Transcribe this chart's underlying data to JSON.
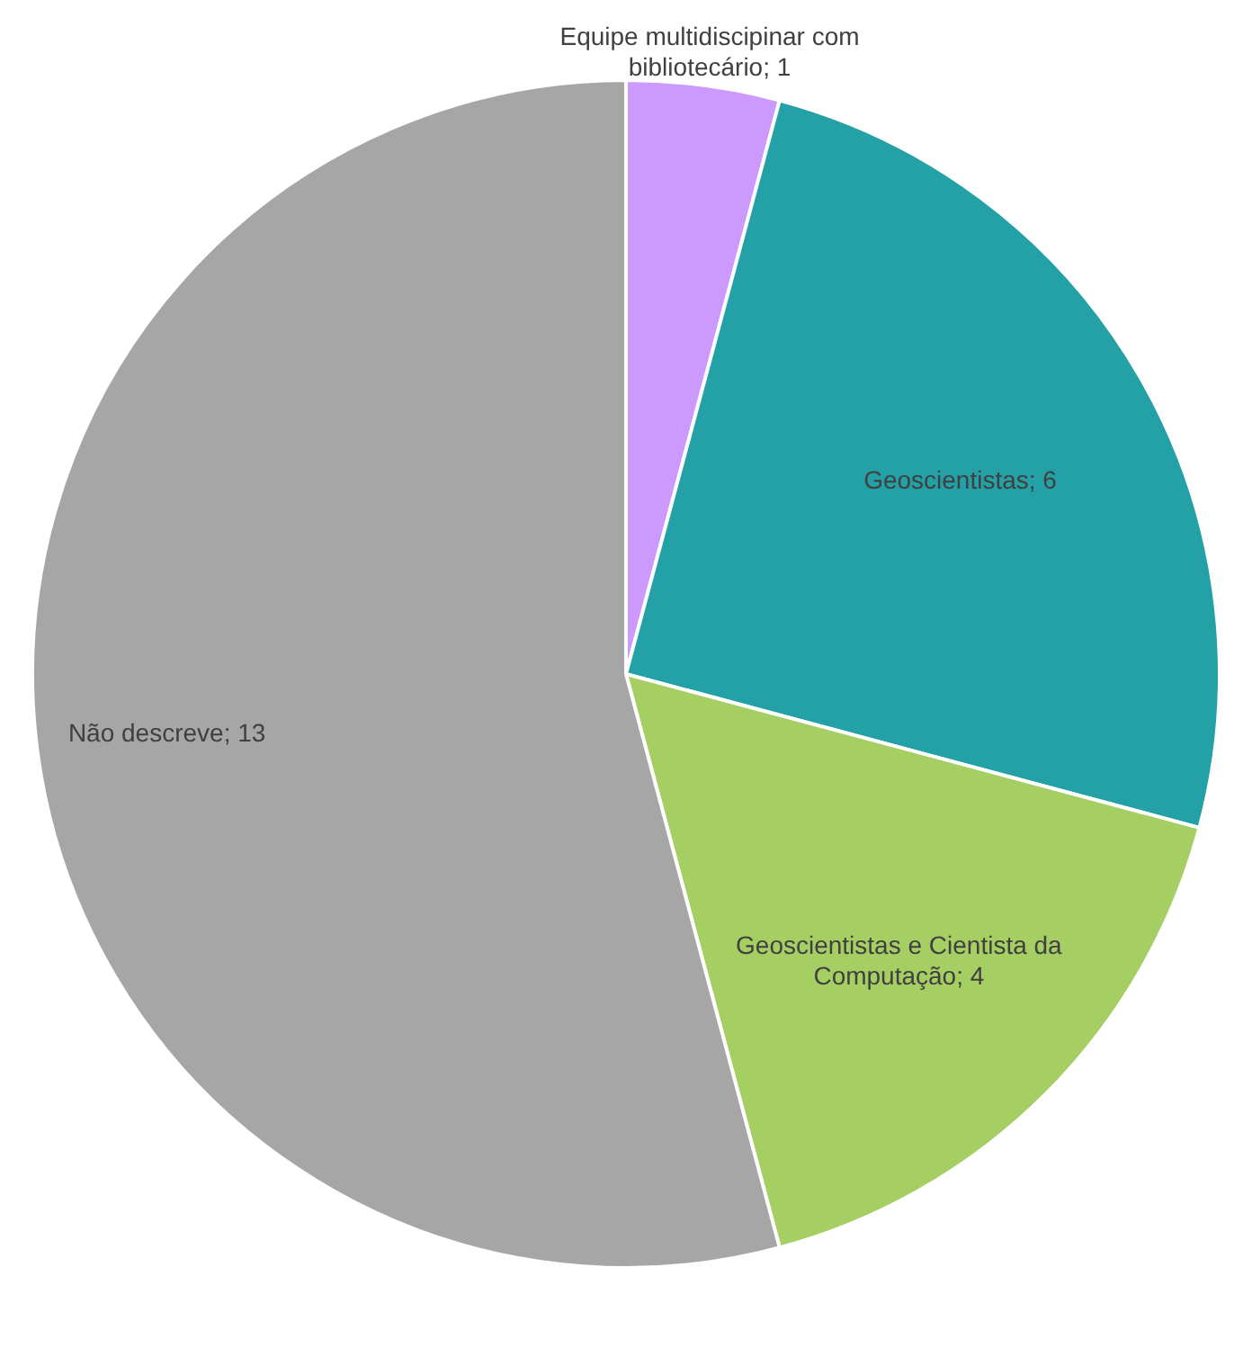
{
  "chart_data": {
    "type": "pie",
    "categories": [
      "Equipe multidiscipinar com bibliotecário; 1",
      "Geoscientistas; 6",
      "Geoscientistas e Cientista da Computação; 4",
      "Não descreve; 13"
    ],
    "values": [
      1,
      6,
      4,
      13
    ],
    "colors": [
      "#cc99ff",
      "#23a1a6",
      "#a6cf63",
      "#a6a6a6"
    ]
  }
}
